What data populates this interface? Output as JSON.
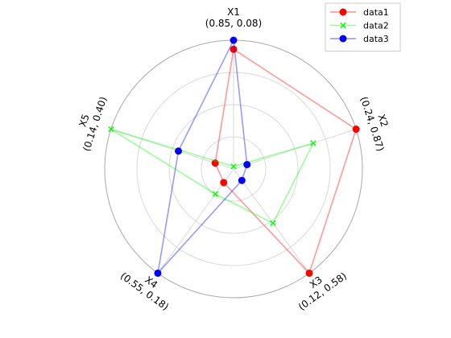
{
  "chart_data": {
    "type": "radar",
    "title": "",
    "axes": [
      {
        "label": "X1",
        "range_label": "(0.85, 0.08)",
        "range": [
          0.85,
          0.08
        ]
      },
      {
        "label": "X2",
        "range_label": "(0.24, 0.87)",
        "range": [
          0.24,
          0.87
        ]
      },
      {
        "label": "X3",
        "range_label": "(0.12, 0.58)",
        "range": [
          0.12,
          0.58
        ]
      },
      {
        "label": "X4",
        "range_label": "(0.55, 0.18)",
        "range": [
          0.55,
          0.18
        ]
      },
      {
        "label": "X5",
        "range_label": "(0.14, 0.40)",
        "range": [
          0.14,
          0.4
        ]
      }
    ],
    "grid": true,
    "grid_rings": 4,
    "legend": {
      "placement": "top-right"
    },
    "series": [
      {
        "name": "data1",
        "color": "#ff0000",
        "marker": "circle",
        "normalized": [
          0.93,
          1.0,
          1.0,
          0.13,
          0.15
        ]
      },
      {
        "name": "data2",
        "color": "#00ff00",
        "marker": "x",
        "normalized": [
          0.02,
          0.65,
          0.52,
          0.24,
          1.0
        ]
      },
      {
        "name": "data3",
        "color": "#0000ff",
        "marker": "circle",
        "normalized": [
          1.0,
          0.11,
          0.11,
          1.0,
          0.45
        ]
      }
    ]
  }
}
